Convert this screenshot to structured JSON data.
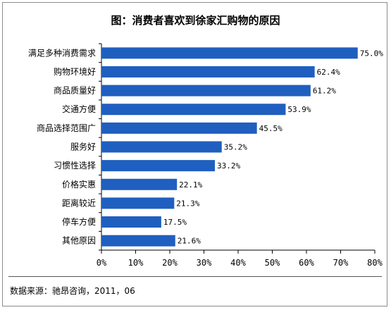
{
  "chart_data": {
    "type": "bar",
    "orientation": "horizontal",
    "title": "图：消费者喜欢到徐家汇购物的原因",
    "categories": [
      "满足多种消费需求",
      "购物环境好",
      "商品质量好",
      "交通方便",
      "商品选择范围广",
      "服务好",
      "习惯性选择",
      "价格实惠",
      "距离较近",
      "停车方便",
      "其他原因"
    ],
    "values": [
      75.0,
      62.4,
      61.2,
      53.9,
      45.5,
      35.2,
      33.2,
      22.1,
      21.3,
      17.5,
      21.6
    ],
    "value_labels": [
      "75.0%",
      "62.4%",
      "61.2%",
      "53.9%",
      "45.5%",
      "35.2%",
      "33.2%",
      "22.1%",
      "21.3%",
      "17.5%",
      "21.6%"
    ],
    "xlim": [
      0,
      80
    ],
    "x_ticks": [
      0,
      10,
      20,
      30,
      40,
      50,
      60,
      70,
      80
    ],
    "x_tick_labels": [
      "0%",
      "10%",
      "20%",
      "30%",
      "40%",
      "50%",
      "60%",
      "70%",
      "80%"
    ],
    "grid": false,
    "bar_color": "#1f5fbf"
  },
  "source": "数据来源：驰昂咨询，2011，06"
}
